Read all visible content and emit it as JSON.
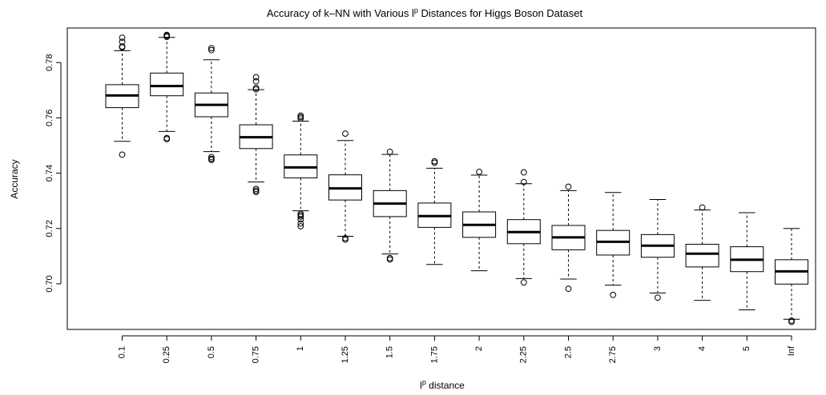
{
  "chart_data": {
    "type": "boxplot",
    "title": {
      "prefix": "Accuracy of k–NN with Various l",
      "superscript": "p",
      "suffix": " Distances for Higgs Boson Dataset"
    },
    "xlabel": {
      "base": "l",
      "superscript": "p",
      "suffix": " distance"
    },
    "ylabel": "Accuracy",
    "ylim": [
      0.6835,
      0.7925
    ],
    "yticks": [
      0.7,
      0.72,
      0.74,
      0.76,
      0.78
    ],
    "ytick_labels": [
      "0.70",
      "0.72",
      "0.74",
      "0.76",
      "0.78"
    ],
    "categories": [
      "0.1",
      "0.25",
      "0.5",
      "0.75",
      "1",
      "1.25",
      "1.5",
      "1.75",
      "2",
      "2.25",
      "2.5",
      "2.75",
      "3",
      "4",
      "5",
      "Inf"
    ],
    "boxes": [
      {
        "whisker_low": 0.7515,
        "q1": 0.7637,
        "median": 0.7681,
        "q3": 0.772,
        "whisker_high": 0.7843,
        "outliers": [
          0.7467,
          0.7855,
          0.7858,
          0.7875,
          0.789
        ]
      },
      {
        "whisker_low": 0.7551,
        "q1": 0.768,
        "median": 0.7715,
        "q3": 0.7762,
        "whisker_high": 0.7891,
        "outliers": [
          0.7523,
          0.7527,
          0.7893,
          0.7897,
          0.79
        ]
      },
      {
        "whisker_low": 0.7478,
        "q1": 0.7604,
        "median": 0.7647,
        "q3": 0.769,
        "whisker_high": 0.781,
        "outliers": [
          0.7448,
          0.7452,
          0.7458,
          0.7845,
          0.7852
        ]
      },
      {
        "whisker_low": 0.7368,
        "q1": 0.7489,
        "median": 0.753,
        "q3": 0.7575,
        "whisker_high": 0.7702,
        "outliers": [
          0.7332,
          0.7337,
          0.7343,
          0.7703,
          0.7708,
          0.7732,
          0.7747
        ]
      },
      {
        "whisker_low": 0.7264,
        "q1": 0.7383,
        "median": 0.7421,
        "q3": 0.7466,
        "whisker_high": 0.7588,
        "outliers": [
          0.7208,
          0.7218,
          0.7233,
          0.7243,
          0.7248,
          0.7253,
          0.7598,
          0.7603,
          0.7608
        ]
      },
      {
        "whisker_low": 0.7172,
        "q1": 0.7303,
        "median": 0.7345,
        "q3": 0.7394,
        "whisker_high": 0.7518,
        "outliers": [
          0.716,
          0.7165,
          0.7543
        ]
      },
      {
        "whisker_low": 0.7108,
        "q1": 0.7243,
        "median": 0.729,
        "q3": 0.7337,
        "whisker_high": 0.7468,
        "outliers": [
          0.7088,
          0.7093,
          0.7477
        ]
      },
      {
        "whisker_low": 0.707,
        "q1": 0.7204,
        "median": 0.7245,
        "q3": 0.7292,
        "whisker_high": 0.7418,
        "outliers": [
          0.7438,
          0.7443
        ]
      },
      {
        "whisker_low": 0.7047,
        "q1": 0.7168,
        "median": 0.7213,
        "q3": 0.726,
        "whisker_high": 0.7393,
        "outliers": [
          0.7405
        ]
      },
      {
        "whisker_low": 0.7019,
        "q1": 0.7145,
        "median": 0.7187,
        "q3": 0.7232,
        "whisker_high": 0.7362,
        "outliers": [
          0.7005,
          0.7368,
          0.7403
        ]
      },
      {
        "whisker_low": 0.7017,
        "q1": 0.7123,
        "median": 0.7168,
        "q3": 0.7211,
        "whisker_high": 0.7337,
        "outliers": [
          0.6982,
          0.7351
        ]
      },
      {
        "whisker_low": 0.6995,
        "q1": 0.7104,
        "median": 0.7152,
        "q3": 0.7193,
        "whisker_high": 0.733,
        "outliers": [
          0.696
        ]
      },
      {
        "whisker_low": 0.6967,
        "q1": 0.7096,
        "median": 0.7138,
        "q3": 0.7178,
        "whisker_high": 0.7305,
        "outliers": [
          0.695
        ]
      },
      {
        "whisker_low": 0.694,
        "q1": 0.7061,
        "median": 0.7109,
        "q3": 0.7143,
        "whisker_high": 0.7267,
        "outliers": [
          0.7276
        ]
      },
      {
        "whisker_low": 0.6906,
        "q1": 0.7044,
        "median": 0.7087,
        "q3": 0.7134,
        "whisker_high": 0.7257,
        "outliers": []
      },
      {
        "whisker_low": 0.6872,
        "q1": 0.6999,
        "median": 0.7045,
        "q3": 0.7087,
        "whisker_high": 0.72,
        "outliers": [
          0.6862,
          0.6867
        ]
      }
    ],
    "grid": false,
    "legend": "none"
  }
}
